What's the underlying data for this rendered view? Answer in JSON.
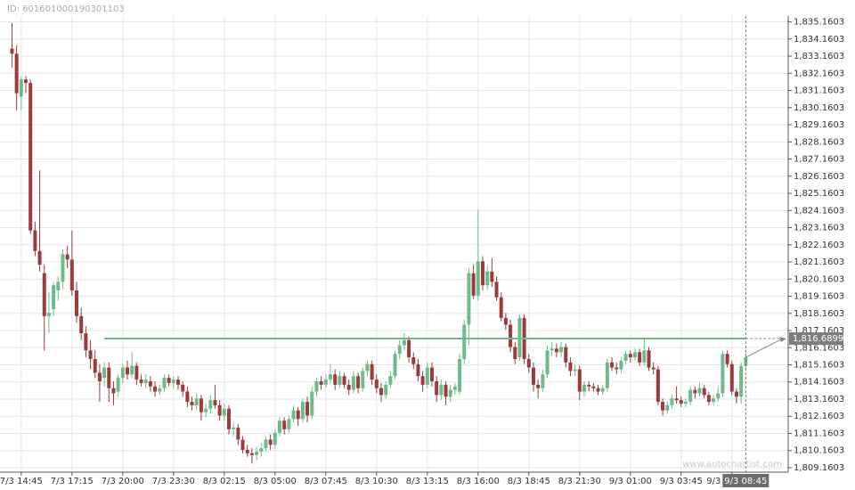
{
  "chart_data": {
    "type": "candlestick",
    "id_text": "ID: 601601000190301103",
    "watermark": "www.autochartist.com",
    "up_color": "#6dbb8a",
    "down_color": "#9c3b3b",
    "level_color": "#6dbb8a",
    "grid": true,
    "xlim": [
      -2.6,
      168.2
    ],
    "ylim": [
      1808.9,
      1835.5
    ],
    "yticks": [
      {
        "value": 1809.1603,
        "label": "1,809.1603"
      },
      {
        "value": 1810.1603,
        "label": "1,810.1603"
      },
      {
        "value": 1811.1603,
        "label": "1,811.1603"
      },
      {
        "value": 1812.1603,
        "label": "1,812.1603"
      },
      {
        "value": 1813.1603,
        "label": "1,813.1603"
      },
      {
        "value": 1814.1603,
        "label": "1,814.1603"
      },
      {
        "value": 1815.1603,
        "label": "1,815.1603"
      },
      {
        "value": 1816.1603,
        "label": "1,816.1603"
      },
      {
        "value": 1817.1603,
        "label": "1,817.1603"
      },
      {
        "value": 1818.1603,
        "label": "1,818.1603"
      },
      {
        "value": 1819.1603,
        "label": "1,819.1603"
      },
      {
        "value": 1820.1603,
        "label": "1,820.1603"
      },
      {
        "value": 1821.1603,
        "label": "1,821.1603"
      },
      {
        "value": 1822.1603,
        "label": "1,822.1603"
      },
      {
        "value": 1823.1603,
        "label": "1,823.1603"
      },
      {
        "value": 1824.1603,
        "label": "1,824.1603"
      },
      {
        "value": 1825.1603,
        "label": "1,825.1603"
      },
      {
        "value": 1826.1603,
        "label": "1,826.1603"
      },
      {
        "value": 1827.1603,
        "label": "1,827.1603"
      },
      {
        "value": 1828.1603,
        "label": "1,828.1603"
      },
      {
        "value": 1829.1603,
        "label": "1,829.1603"
      },
      {
        "value": 1830.1603,
        "label": "1,830.1603"
      },
      {
        "value": 1831.1603,
        "label": "1,831.1603"
      },
      {
        "value": 1832.1603,
        "label": "1,832.1603"
      },
      {
        "value": 1833.1603,
        "label": "1,833.1603"
      },
      {
        "value": 1834.1603,
        "label": "1,834.1603"
      },
      {
        "value": 1835.1603,
        "label": "1,835.1603"
      }
    ],
    "xticks": [
      {
        "value": 2,
        "label": "7/3 14:45"
      },
      {
        "value": 13,
        "label": "7/3 17:15"
      },
      {
        "value": 24,
        "label": "7/3 20:00"
      },
      {
        "value": 35,
        "label": "7/3 23:30"
      },
      {
        "value": 46,
        "label": "8/3 02:15"
      },
      {
        "value": 57,
        "label": "8/3 05:00"
      },
      {
        "value": 68,
        "label": "8/3 07:45"
      },
      {
        "value": 79,
        "label": "8/3 10:30"
      },
      {
        "value": 90,
        "label": "8/3 13:15"
      },
      {
        "value": 101,
        "label": "8/3 16:00"
      },
      {
        "value": 112,
        "label": "8/3 18:45"
      },
      {
        "value": 123,
        "label": "8/3 21:30"
      },
      {
        "value": 134,
        "label": "9/3 01:00"
      },
      {
        "value": 145,
        "label": "9/3 03:45"
      },
      {
        "value": 156,
        "label": "9/3"
      }
    ],
    "current": {
      "value": 159,
      "label": "9/3 08:45"
    },
    "level": {
      "value": 1816.6899,
      "label": "1,816.6899",
      "start": 20
    },
    "ohlc": [
      [
        1833.6,
        1835.1,
        1832.5,
        1833.3
      ],
      [
        1833.3,
        1833.8,
        1830.0,
        1831.0
      ],
      [
        1830.8,
        1832.0,
        1830.0,
        1831.8
      ],
      [
        1831.8,
        1832.0,
        1831.0,
        1831.6
      ],
      [
        1831.6,
        1831.8,
        1822.8,
        1823.0
      ],
      [
        1823.0,
        1823.5,
        1821.5,
        1821.8
      ],
      [
        1821.8,
        1826.5,
        1820.6,
        1821.0
      ],
      [
        1820.5,
        1821.0,
        1816.0,
        1818.0
      ],
      [
        1818.0,
        1819.4,
        1817.0,
        1818.2
      ],
      [
        1818.4,
        1820.0,
        1818.0,
        1819.8
      ],
      [
        1819.5,
        1820.3,
        1818.9,
        1820.0
      ],
      [
        1820.0,
        1821.9,
        1819.6,
        1821.6
      ],
      [
        1821.6,
        1822.1,
        1820.8,
        1821.3
      ],
      [
        1821.3,
        1823.0,
        1819.2,
        1819.5
      ],
      [
        1819.5,
        1820.0,
        1817.6,
        1818.0
      ],
      [
        1818.0,
        1818.5,
        1816.6,
        1817.0
      ],
      [
        1817.0,
        1817.4,
        1815.6,
        1816.0
      ],
      [
        1816.0,
        1816.6,
        1814.9,
        1815.5
      ],
      [
        1815.5,
        1816.0,
        1814.4,
        1814.7
      ],
      [
        1814.7,
        1815.2,
        1813.0,
        1814.2
      ],
      [
        1814.4,
        1815.3,
        1813.9,
        1815.0
      ],
      [
        1815.0,
        1815.3,
        1813.0,
        1813.8
      ],
      [
        1813.8,
        1814.2,
        1812.8,
        1813.5
      ],
      [
        1813.6,
        1814.6,
        1813.3,
        1814.4
      ],
      [
        1814.4,
        1815.2,
        1814.1,
        1815.0
      ],
      [
        1815.0,
        1815.4,
        1814.3,
        1814.6
      ],
      [
        1814.6,
        1815.9,
        1814.4,
        1815.1
      ],
      [
        1815.1,
        1815.3,
        1814.0,
        1814.3
      ],
      [
        1814.3,
        1814.6,
        1813.9,
        1814.1
      ],
      [
        1814.1,
        1814.6,
        1813.8,
        1814.3
      ],
      [
        1814.2,
        1814.5,
        1813.6,
        1813.9
      ],
      [
        1813.9,
        1814.2,
        1813.3,
        1813.6
      ],
      [
        1813.6,
        1814.0,
        1813.4,
        1813.8
      ],
      [
        1813.8,
        1814.6,
        1813.6,
        1814.4
      ],
      [
        1814.4,
        1814.6,
        1813.9,
        1814.1
      ],
      [
        1814.1,
        1814.5,
        1813.8,
        1814.3
      ],
      [
        1814.3,
        1814.5,
        1813.7,
        1814.0
      ],
      [
        1814.0,
        1814.2,
        1813.3,
        1813.6
      ],
      [
        1813.6,
        1813.9,
        1812.7,
        1813.0
      ],
      [
        1813.0,
        1813.3,
        1812.5,
        1812.8
      ],
      [
        1812.8,
        1813.5,
        1812.5,
        1813.2
      ],
      [
        1813.2,
        1813.4,
        1811.9,
        1812.4
      ],
      [
        1812.4,
        1812.9,
        1812.1,
        1812.6
      ],
      [
        1812.6,
        1813.4,
        1812.3,
        1813.1
      ],
      [
        1813.1,
        1814.0,
        1812.6,
        1812.8
      ],
      [
        1812.8,
        1813.1,
        1811.9,
        1812.2
      ],
      [
        1812.2,
        1812.9,
        1811.9,
        1812.6
      ],
      [
        1812.6,
        1812.8,
        1811.1,
        1811.4
      ],
      [
        1811.4,
        1811.8,
        1811.0,
        1811.5
      ],
      [
        1811.5,
        1811.7,
        1810.5,
        1810.8
      ],
      [
        1810.8,
        1811.0,
        1810.0,
        1810.2
      ],
      [
        1810.2,
        1810.5,
        1809.8,
        1810.0
      ],
      [
        1810.0,
        1810.3,
        1809.4,
        1809.9
      ],
      [
        1809.9,
        1810.4,
        1809.6,
        1810.1
      ],
      [
        1810.1,
        1810.6,
        1809.8,
        1810.3
      ],
      [
        1810.3,
        1811.0,
        1810.1,
        1810.8
      ],
      [
        1810.8,
        1811.1,
        1810.2,
        1810.5
      ],
      [
        1810.5,
        1811.4,
        1810.3,
        1811.2
      ],
      [
        1811.2,
        1812.1,
        1811.0,
        1811.9
      ],
      [
        1811.9,
        1812.1,
        1811.1,
        1811.4
      ],
      [
        1811.4,
        1812.2,
        1811.2,
        1812.0
      ],
      [
        1812.0,
        1812.8,
        1811.8,
        1812.5
      ],
      [
        1812.5,
        1812.7,
        1811.6,
        1812.0
      ],
      [
        1812.0,
        1813.2,
        1811.8,
        1813.0
      ],
      [
        1813.0,
        1813.3,
        1811.8,
        1812.2
      ],
      [
        1812.2,
        1813.9,
        1812.0,
        1813.6
      ],
      [
        1813.6,
        1814.4,
        1813.3,
        1814.2
      ],
      [
        1814.2,
        1814.5,
        1813.7,
        1814.0
      ],
      [
        1814.0,
        1814.6,
        1813.8,
        1814.3
      ],
      [
        1814.3,
        1815.2,
        1814.1,
        1814.6
      ],
      [
        1814.6,
        1814.9,
        1813.7,
        1814.0
      ],
      [
        1814.0,
        1814.8,
        1813.8,
        1814.5
      ],
      [
        1814.5,
        1814.7,
        1813.8,
        1814.0
      ],
      [
        1814.0,
        1814.3,
        1813.4,
        1813.7
      ],
      [
        1813.7,
        1814.8,
        1813.5,
        1814.5
      ],
      [
        1814.5,
        1814.7,
        1813.5,
        1813.8
      ],
      [
        1813.8,
        1815.0,
        1813.6,
        1814.8
      ],
      [
        1814.8,
        1815.4,
        1814.5,
        1815.2
      ],
      [
        1815.2,
        1815.4,
        1814.0,
        1814.3
      ],
      [
        1814.3,
        1814.6,
        1813.5,
        1813.8
      ],
      [
        1813.8,
        1814.1,
        1813.0,
        1813.4
      ],
      [
        1813.4,
        1814.2,
        1813.2,
        1814.0
      ],
      [
        1814.0,
        1814.8,
        1813.8,
        1814.5
      ],
      [
        1814.5,
        1816.0,
        1814.3,
        1815.8
      ],
      [
        1815.8,
        1816.6,
        1815.5,
        1816.3
      ],
      [
        1816.3,
        1817.0,
        1816.0,
        1816.6
      ],
      [
        1816.6,
        1816.8,
        1815.3,
        1815.6
      ],
      [
        1815.6,
        1815.9,
        1814.9,
        1815.2
      ],
      [
        1815.2,
        1815.5,
        1814.2,
        1814.5
      ],
      [
        1814.5,
        1814.8,
        1813.6,
        1814.0
      ],
      [
        1814.0,
        1815.3,
        1813.8,
        1815.0
      ],
      [
        1815.0,
        1815.3,
        1813.9,
        1814.2
      ],
      [
        1814.2,
        1814.5,
        1813.0,
        1813.4
      ],
      [
        1813.4,
        1814.3,
        1813.1,
        1814.0
      ],
      [
        1814.0,
        1814.2,
        1812.8,
        1813.3
      ],
      [
        1813.3,
        1814.0,
        1813.0,
        1813.7
      ],
      [
        1813.7,
        1814.1,
        1813.4,
        1813.9
      ],
      [
        1813.6,
        1815.8,
        1813.4,
        1815.5
      ],
      [
        1815.5,
        1817.8,
        1815.2,
        1817.5
      ],
      [
        1817.5,
        1820.8,
        1816.3,
        1820.5
      ],
      [
        1820.5,
        1821.0,
        1819.0,
        1819.2
      ],
      [
        1819.2,
        1824.2,
        1818.9,
        1821.2
      ],
      [
        1821.2,
        1821.5,
        1819.5,
        1819.8
      ],
      [
        1819.8,
        1820.9,
        1819.5,
        1820.6
      ],
      [
        1820.6,
        1821.4,
        1819.7,
        1820.0
      ],
      [
        1820.0,
        1820.3,
        1818.9,
        1819.1
      ],
      [
        1819.1,
        1819.4,
        1817.7,
        1817.9
      ],
      [
        1817.9,
        1818.2,
        1817.2,
        1817.5
      ],
      [
        1817.5,
        1817.8,
        1815.9,
        1816.2
      ],
      [
        1816.2,
        1816.5,
        1815.2,
        1815.5
      ],
      [
        1815.6,
        1818.1,
        1815.4,
        1817.9
      ],
      [
        1817.9,
        1818.1,
        1815.2,
        1815.5
      ],
      [
        1815.5,
        1815.8,
        1814.7,
        1815.0
      ],
      [
        1815.0,
        1815.3,
        1813.6,
        1814.0
      ],
      [
        1814.0,
        1814.3,
        1813.2,
        1813.8
      ],
      [
        1813.8,
        1814.9,
        1813.6,
        1814.6
      ],
      [
        1814.6,
        1816.3,
        1814.4,
        1816.0
      ],
      [
        1816.0,
        1816.5,
        1815.7,
        1816.1
      ],
      [
        1816.1,
        1816.4,
        1815.6,
        1815.9
      ],
      [
        1815.9,
        1816.5,
        1815.6,
        1816.2
      ],
      [
        1816.2,
        1816.4,
        1815.0,
        1815.3
      ],
      [
        1815.3,
        1815.6,
        1814.5,
        1814.8
      ],
      [
        1814.8,
        1815.2,
        1814.5,
        1814.9
      ],
      [
        1814.9,
        1815.1,
        1813.1,
        1813.6
      ],
      [
        1813.6,
        1814.2,
        1813.3,
        1814.0
      ],
      [
        1814.0,
        1814.2,
        1813.6,
        1813.9
      ],
      [
        1813.9,
        1814.1,
        1813.6,
        1813.8
      ],
      [
        1813.8,
        1814.0,
        1813.4,
        1813.6
      ],
      [
        1813.6,
        1814.0,
        1813.4,
        1813.8
      ],
      [
        1813.8,
        1815.5,
        1813.6,
        1815.3
      ],
      [
        1815.3,
        1815.6,
        1814.8,
        1815.0
      ],
      [
        1815.0,
        1815.3,
        1814.6,
        1814.9
      ],
      [
        1814.9,
        1815.6,
        1814.7,
        1815.4
      ],
      [
        1815.4,
        1816.0,
        1815.2,
        1815.8
      ],
      [
        1815.8,
        1816.0,
        1815.3,
        1815.6
      ],
      [
        1815.6,
        1816.1,
        1815.4,
        1815.9
      ],
      [
        1815.9,
        1816.1,
        1815.1,
        1815.3
      ],
      [
        1815.3,
        1816.7,
        1815.1,
        1816.0
      ],
      [
        1816.0,
        1816.2,
        1814.8,
        1815.0
      ],
      [
        1815.0,
        1815.3,
        1814.6,
        1814.9
      ],
      [
        1814.9,
        1815.1,
        1812.8,
        1813.0
      ],
      [
        1813.0,
        1813.2,
        1812.2,
        1812.5
      ],
      [
        1812.5,
        1813.0,
        1812.3,
        1812.8
      ],
      [
        1812.8,
        1813.4,
        1812.6,
        1813.2
      ],
      [
        1813.2,
        1813.9,
        1812.9,
        1813.1
      ],
      [
        1813.1,
        1813.3,
        1812.7,
        1812.9
      ],
      [
        1812.9,
        1813.2,
        1812.7,
        1813.0
      ],
      [
        1813.0,
        1813.9,
        1812.8,
        1813.7
      ],
      [
        1813.7,
        1813.9,
        1813.2,
        1813.5
      ],
      [
        1813.5,
        1814.1,
        1813.3,
        1813.8
      ],
      [
        1813.8,
        1814.0,
        1813.2,
        1813.4
      ],
      [
        1813.4,
        1813.6,
        1812.8,
        1813.0
      ],
      [
        1813.0,
        1813.4,
        1812.8,
        1813.2
      ],
      [
        1813.2,
        1813.9,
        1813.0,
        1813.5
      ],
      [
        1813.5,
        1816.0,
        1813.3,
        1815.8
      ],
      [
        1815.8,
        1816.0,
        1815.0,
        1815.2
      ],
      [
        1815.2,
        1815.4,
        1813.4,
        1813.6
      ],
      [
        1813.6,
        1813.8,
        1812.9,
        1813.3
      ],
      [
        1813.3,
        1815.3,
        1812.9,
        1815.1
      ],
      [
        1815.1,
        1815.8,
        1814.9,
        1815.6
      ]
    ]
  }
}
